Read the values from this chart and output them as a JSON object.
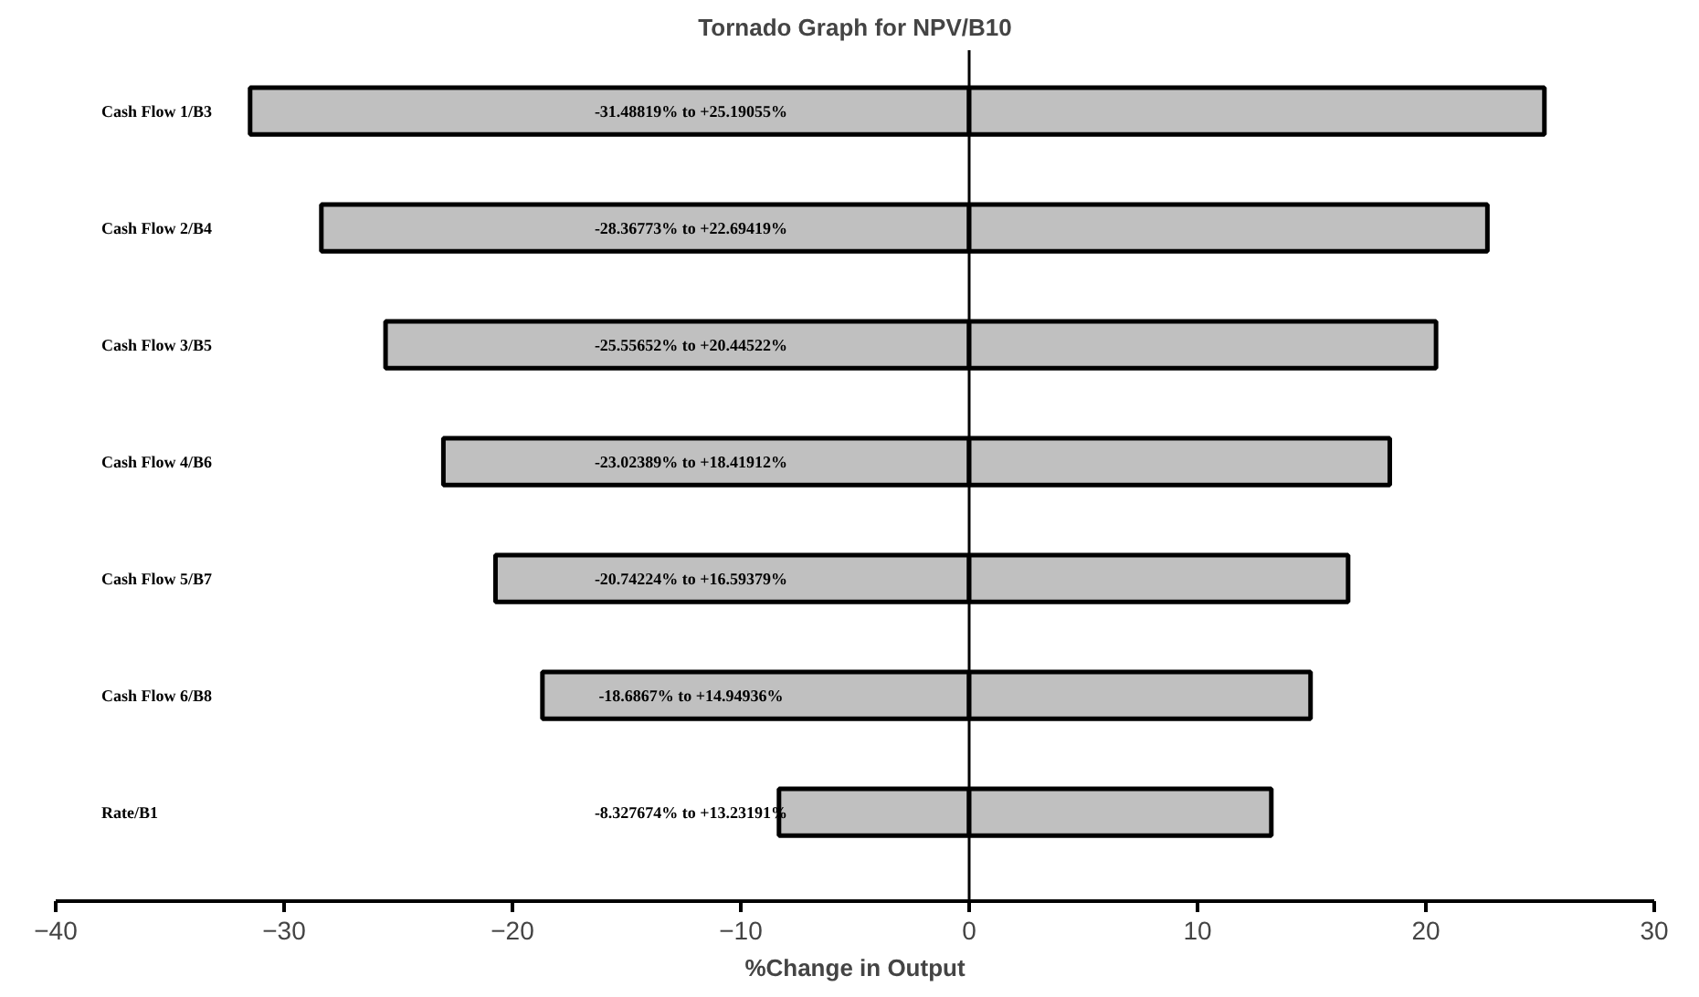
{
  "chart_data": {
    "type": "bar",
    "orientation": "horizontal",
    "stacked": true,
    "title": "Tornado Graph for NPV/B10",
    "xlabel": "%Change in Output",
    "categories": [
      "Cash Flow 1/B3",
      "Cash Flow 2/B4",
      "Cash Flow 3/B5",
      "Cash Flow 4/B6",
      "Cash Flow 5/B7",
      "Cash Flow 6/B8",
      "Rate/B1"
    ],
    "series": [
      {
        "color": "#c0c0c0",
        "values": [
          -31.48819,
          -28.36773,
          -25.55652,
          -23.02389,
          -20.74224,
          -18.6867,
          -8.327674
        ]
      },
      {
        "color": "#c0c0c0",
        "values": [
          25.19055,
          22.69419,
          20.44522,
          18.41912,
          16.59379,
          14.94936,
          13.23191
        ]
      }
    ],
    "annotations": [
      "-31.48819%  to  +25.19055%",
      "-28.36773%  to  +22.69419%",
      "-25.55652%  to  +20.44522%",
      "-23.02389%  to  +18.41912%",
      "-20.74224%  to  +16.59379%",
      "-18.6867%  to  +14.94936%",
      "-8.327674%  to  +13.23191%"
    ],
    "ref_lines": [
      {
        "axis": "x",
        "value": 0,
        "color": "#000000"
      }
    ],
    "xlim": [
      -40,
      30
    ],
    "xticks": [
      -40,
      -30,
      -20,
      -10,
      0,
      10,
      20,
      30
    ]
  }
}
